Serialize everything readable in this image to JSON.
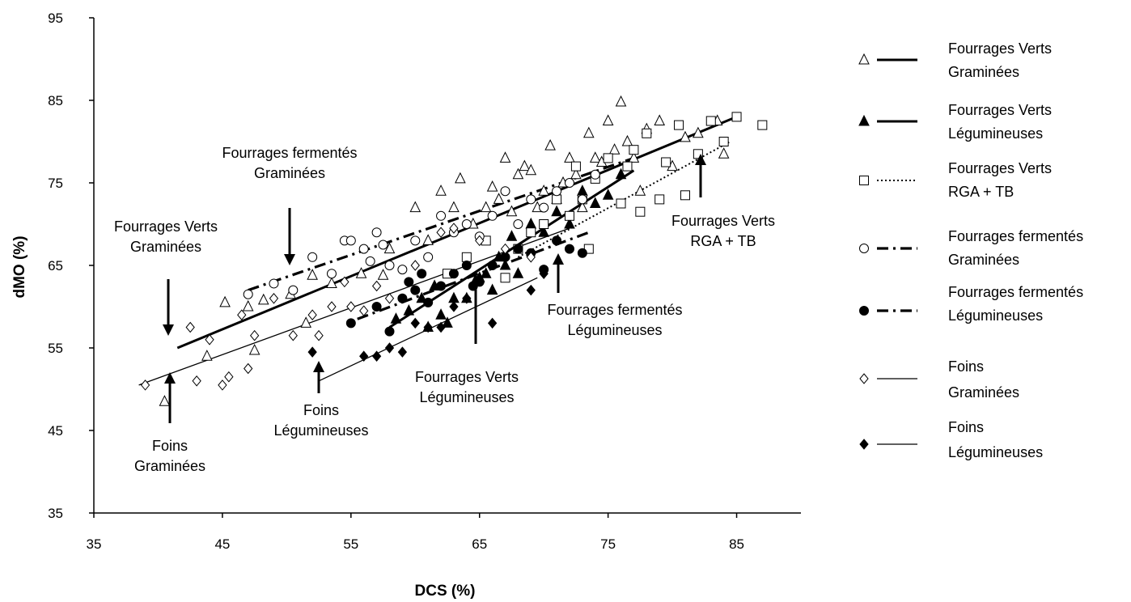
{
  "chart_data": {
    "type": "scatter",
    "title": "",
    "xlabel": "DCS (%)",
    "ylabel": "dMO (%)",
    "xlim": [
      35,
      90
    ],
    "ylim": [
      35,
      95
    ],
    "xticks": [
      "35",
      "45",
      "55",
      "65",
      "75",
      "85"
    ],
    "yticks": [
      "35",
      "45",
      "55",
      "65",
      "75",
      "85",
      "95"
    ],
    "grid": false,
    "legend_position": "right",
    "series": [
      {
        "name": "Fourrages Verts Graminées",
        "marker": "triangle-open",
        "line": "solid-thick",
        "fit": [
          [
            41.5,
            55.0
          ],
          [
            85.0,
            83.0
          ]
        ],
        "points": [
          [
            40.5,
            48.5
          ],
          [
            43.8,
            54.0
          ],
          [
            45.2,
            60.5
          ],
          [
            47.0,
            60.0
          ],
          [
            47.5,
            54.7
          ],
          [
            48.2,
            60.8
          ],
          [
            50.3,
            61.5
          ],
          [
            51.5,
            58.0
          ],
          [
            52.0,
            63.8
          ],
          [
            53.5,
            62.8
          ],
          [
            55.8,
            64.0
          ],
          [
            57.5,
            63.8
          ],
          [
            58.0,
            67.0
          ],
          [
            60.0,
            72.0
          ],
          [
            61.0,
            68.0
          ],
          [
            62.0,
            74.0
          ],
          [
            63.0,
            72.0
          ],
          [
            63.5,
            75.5
          ],
          [
            64.5,
            70.0
          ],
          [
            65.5,
            72.0
          ],
          [
            66.0,
            74.5
          ],
          [
            66.5,
            73.0
          ],
          [
            67.0,
            78.0
          ],
          [
            67.5,
            71.5
          ],
          [
            68.0,
            76.0
          ],
          [
            68.5,
            77.0
          ],
          [
            69.0,
            76.5
          ],
          [
            69.5,
            72.0
          ],
          [
            70.0,
            74.0
          ],
          [
            70.5,
            79.5
          ],
          [
            71.0,
            73.0
          ],
          [
            71.5,
            75.0
          ],
          [
            72.0,
            78.0
          ],
          [
            72.5,
            76.0
          ],
          [
            73.0,
            72.0
          ],
          [
            73.5,
            81.0
          ],
          [
            74.0,
            78.0
          ],
          [
            74.5,
            77.5
          ],
          [
            75.0,
            82.5
          ],
          [
            75.5,
            79.0
          ],
          [
            76.0,
            84.8
          ],
          [
            76.5,
            80.0
          ],
          [
            77.0,
            78.0
          ],
          [
            77.5,
            74.0
          ],
          [
            78.0,
            81.5
          ],
          [
            79.0,
            82.5
          ],
          [
            80.0,
            77.0
          ],
          [
            81.0,
            80.5
          ],
          [
            82.0,
            81.0
          ],
          [
            83.5,
            82.5
          ],
          [
            84.0,
            78.5
          ]
        ]
      },
      {
        "name": "Fourrages Verts Légumineuses",
        "marker": "triangle-filled",
        "line": "solid-thick",
        "fit": [
          [
            58.0,
            57.5
          ],
          [
            77.0,
            76.5
          ]
        ],
        "points": [
          [
            58.5,
            58.5
          ],
          [
            59.5,
            59.5
          ],
          [
            60.5,
            61.0
          ],
          [
            61.0,
            57.5
          ],
          [
            61.5,
            62.5
          ],
          [
            62.0,
            59.0
          ],
          [
            62.5,
            58.0
          ],
          [
            63.0,
            61.0
          ],
          [
            64.0,
            61.0
          ],
          [
            65.0,
            63.5
          ],
          [
            65.5,
            64.0
          ],
          [
            66.0,
            62.0
          ],
          [
            66.5,
            66.0
          ],
          [
            67.0,
            65.0
          ],
          [
            67.5,
            68.5
          ],
          [
            68.0,
            64.0
          ],
          [
            69.0,
            70.0
          ],
          [
            70.0,
            69.0
          ],
          [
            71.0,
            71.5
          ],
          [
            72.0,
            70.0
          ],
          [
            73.0,
            74.0
          ],
          [
            74.0,
            72.5
          ],
          [
            75.0,
            73.5
          ],
          [
            76.0,
            76.0
          ]
        ]
      },
      {
        "name": "Fourrages Verts RGA + TB",
        "marker": "square-open",
        "line": "dotted",
        "fit": [
          [
            68.0,
            66.0
          ],
          [
            84.5,
            80.0
          ]
        ],
        "points": [
          [
            62.5,
            64.0
          ],
          [
            64.0,
            66.0
          ],
          [
            65.5,
            68.0
          ],
          [
            67.0,
            63.5
          ],
          [
            68.0,
            67.0
          ],
          [
            69.0,
            69.0
          ],
          [
            70.0,
            70.0
          ],
          [
            71.0,
            73.0
          ],
          [
            72.0,
            71.0
          ],
          [
            72.5,
            77.0
          ],
          [
            73.0,
            73.0
          ],
          [
            73.5,
            67.0
          ],
          [
            74.0,
            75.5
          ],
          [
            75.0,
            78.0
          ],
          [
            76.0,
            72.5
          ],
          [
            76.5,
            77.0
          ],
          [
            77.0,
            79.0
          ],
          [
            77.5,
            71.5
          ],
          [
            78.0,
            81.0
          ],
          [
            79.0,
            73.0
          ],
          [
            79.5,
            77.5
          ],
          [
            80.5,
            82.0
          ],
          [
            81.0,
            73.5
          ],
          [
            82.0,
            78.5
          ],
          [
            83.0,
            82.5
          ],
          [
            84.0,
            80.0
          ],
          [
            85.0,
            83.0
          ],
          [
            87.0,
            82.0
          ]
        ]
      },
      {
        "name": "Fourrages fermentés Graminées",
        "marker": "circle-open",
        "line": "dash-dot-thick",
        "fit": [
          [
            47.0,
            62.0
          ],
          [
            77.0,
            78.0
          ]
        ],
        "points": [
          [
            47.0,
            61.5
          ],
          [
            49.0,
            62.8
          ],
          [
            50.5,
            62.0
          ],
          [
            52.0,
            66.0
          ],
          [
            53.5,
            64.0
          ],
          [
            54.5,
            68.0
          ],
          [
            55.0,
            68.0
          ],
          [
            56.0,
            67.0
          ],
          [
            56.5,
            65.5
          ],
          [
            57.0,
            69.0
          ],
          [
            57.5,
            67.5
          ],
          [
            58.0,
            65.0
          ],
          [
            59.0,
            64.5
          ],
          [
            60.0,
            68.0
          ],
          [
            61.0,
            66.0
          ],
          [
            62.0,
            71.0
          ],
          [
            63.0,
            69.0
          ],
          [
            64.0,
            70.0
          ],
          [
            65.0,
            68.5
          ],
          [
            66.0,
            71.0
          ],
          [
            67.0,
            74.0
          ],
          [
            68.0,
            70.0
          ],
          [
            69.0,
            73.0
          ],
          [
            70.0,
            72.0
          ],
          [
            71.0,
            74.0
          ],
          [
            72.0,
            75.0
          ],
          [
            73.0,
            73.0
          ],
          [
            74.0,
            76.0
          ]
        ]
      },
      {
        "name": "Fourrages fermentés Légumineuses",
        "marker": "circle-filled",
        "line": "dash-dot-thick",
        "fit": [
          [
            55.5,
            58.5
          ],
          [
            73.5,
            69.0
          ]
        ],
        "points": [
          [
            55.0,
            58.0
          ],
          [
            57.0,
            60.0
          ],
          [
            58.0,
            57.0
          ],
          [
            59.0,
            61.0
          ],
          [
            59.5,
            63.0
          ],
          [
            60.0,
            62.0
          ],
          [
            60.5,
            64.0
          ],
          [
            61.0,
            60.5
          ],
          [
            62.0,
            62.5
          ],
          [
            63.0,
            64.0
          ],
          [
            64.0,
            65.0
          ],
          [
            64.5,
            62.5
          ],
          [
            65.0,
            63.0
          ],
          [
            66.0,
            65.0
          ],
          [
            67.0,
            66.0
          ],
          [
            68.0,
            67.0
          ],
          [
            69.0,
            66.5
          ],
          [
            70.0,
            64.5
          ],
          [
            71.0,
            68.0
          ],
          [
            72.0,
            67.0
          ],
          [
            73.0,
            66.5
          ]
        ]
      },
      {
        "name": "Foins Graminées",
        "marker": "diamond-open",
        "line": "solid-thin",
        "fit": [
          [
            38.5,
            50.5
          ],
          [
            72.0,
            69.5
          ]
        ],
        "points": [
          [
            39.0,
            50.5
          ],
          [
            42.5,
            57.5
          ],
          [
            43.0,
            51.0
          ],
          [
            44.0,
            56.0
          ],
          [
            45.0,
            50.5
          ],
          [
            45.5,
            51.5
          ],
          [
            46.5,
            59.0
          ],
          [
            47.0,
            52.5
          ],
          [
            47.5,
            56.5
          ],
          [
            49.0,
            61.0
          ],
          [
            50.5,
            56.5
          ],
          [
            52.0,
            59.0
          ],
          [
            52.5,
            56.5
          ],
          [
            53.5,
            60.0
          ],
          [
            54.5,
            63.0
          ],
          [
            55.0,
            60.0
          ],
          [
            56.0,
            59.5
          ],
          [
            57.0,
            62.5
          ],
          [
            58.0,
            61.0
          ],
          [
            60.0,
            65.0
          ],
          [
            62.0,
            69.0
          ],
          [
            63.0,
            69.5
          ],
          [
            65.0,
            68.0
          ],
          [
            67.0,
            67.0
          ],
          [
            69.0,
            66.0
          ]
        ]
      },
      {
        "name": "Foins Légumineuses",
        "marker": "diamond-filled",
        "line": "solid-thin",
        "fit": [
          [
            52.5,
            51.0
          ],
          [
            69.5,
            63.5
          ]
        ],
        "points": [
          [
            52.0,
            54.5
          ],
          [
            56.0,
            54.0
          ],
          [
            57.0,
            54.0
          ],
          [
            58.0,
            55.0
          ],
          [
            59.0,
            54.5
          ],
          [
            60.0,
            58.0
          ],
          [
            61.0,
            57.5
          ],
          [
            62.0,
            57.5
          ],
          [
            63.0,
            60.0
          ],
          [
            64.0,
            61.0
          ],
          [
            66.0,
            58.0
          ],
          [
            69.0,
            62.0
          ],
          [
            70.0,
            64.0
          ]
        ]
      }
    ],
    "annotations": [
      {
        "lines": [
          "Fourrages fermentés",
          "Graminées"
        ]
      },
      {
        "lines": [
          "Fourrages Verts",
          "Graminées"
        ]
      },
      {
        "lines": [
          "Foins",
          "Graminées"
        ]
      },
      {
        "lines": [
          "Foins",
          "Légumineuses"
        ]
      },
      {
        "lines": [
          "Fourrages Verts",
          "Légumineuses"
        ]
      },
      {
        "lines": [
          "Fourrages fermentés",
          "Légumineuses"
        ]
      },
      {
        "lines": [
          "Fourrages Verts",
          "RGA + TB"
        ]
      }
    ]
  }
}
